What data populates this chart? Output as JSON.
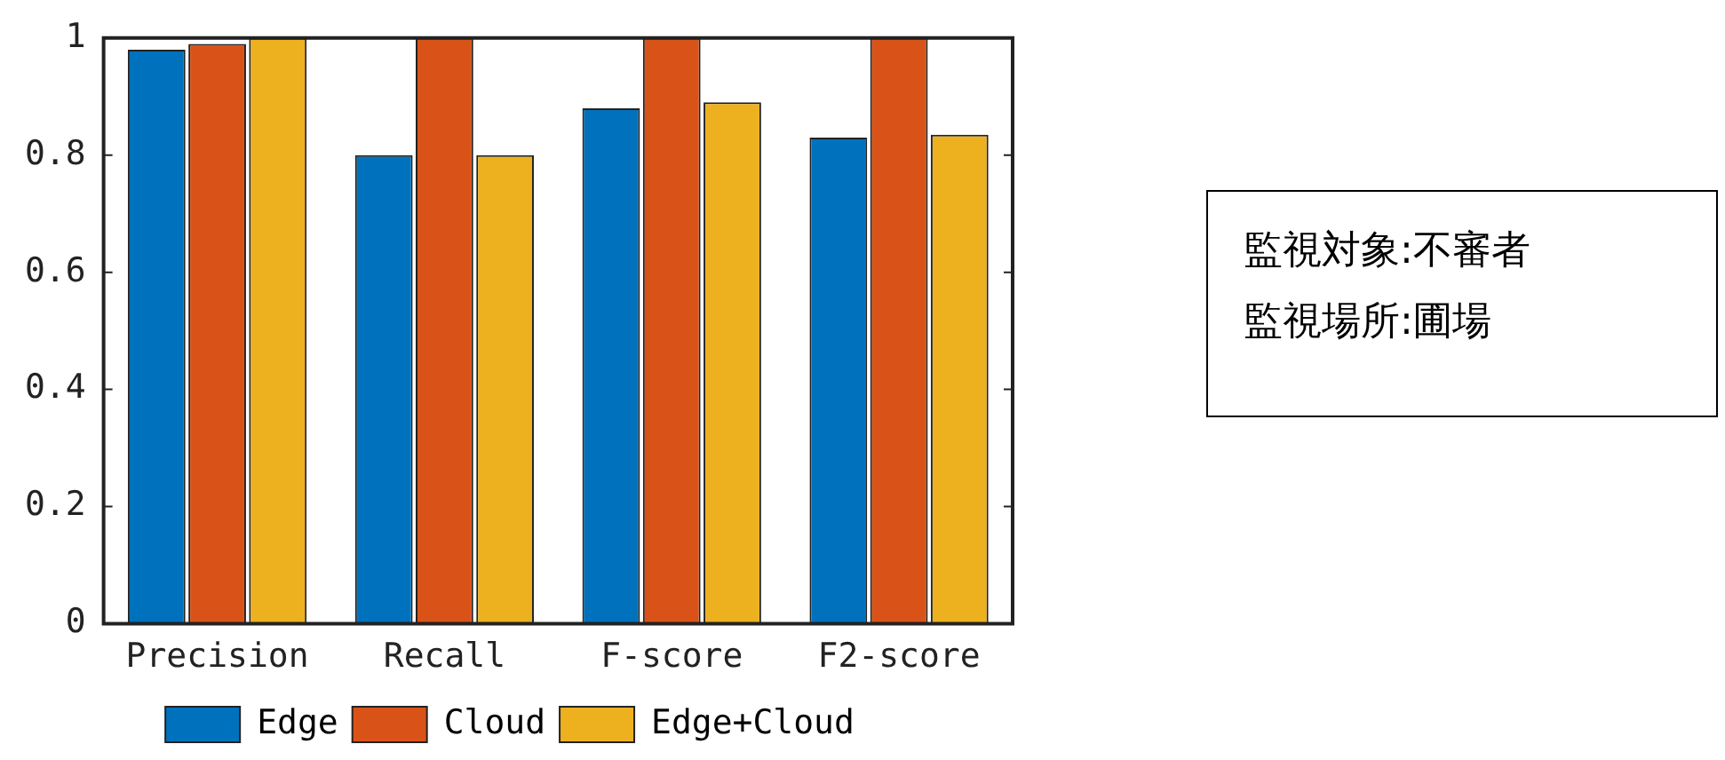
{
  "chart_data": {
    "type": "bar",
    "categories": [
      "Precision",
      "Recall",
      "F-score",
      "F2-score"
    ],
    "series": [
      {
        "name": "Edge",
        "color": "#0072bd",
        "values": [
          0.98,
          0.8,
          0.88,
          0.83
        ]
      },
      {
        "name": "Cloud",
        "color": "#d95319",
        "values": [
          0.99,
          1,
          1,
          1
        ]
      },
      {
        "name": "Edge+Cloud",
        "color": "#edb120",
        "values": [
          1,
          0.8,
          0.89,
          0.835
        ]
      }
    ],
    "ylim": [
      0,
      1
    ],
    "yticks": [
      0,
      0.2,
      0.4,
      0.6,
      0.8,
      1
    ],
    "grid": false,
    "legend": "bottom",
    "annotations": [
      "監視対象:不審者",
      "監視場所:圃場"
    ]
  }
}
